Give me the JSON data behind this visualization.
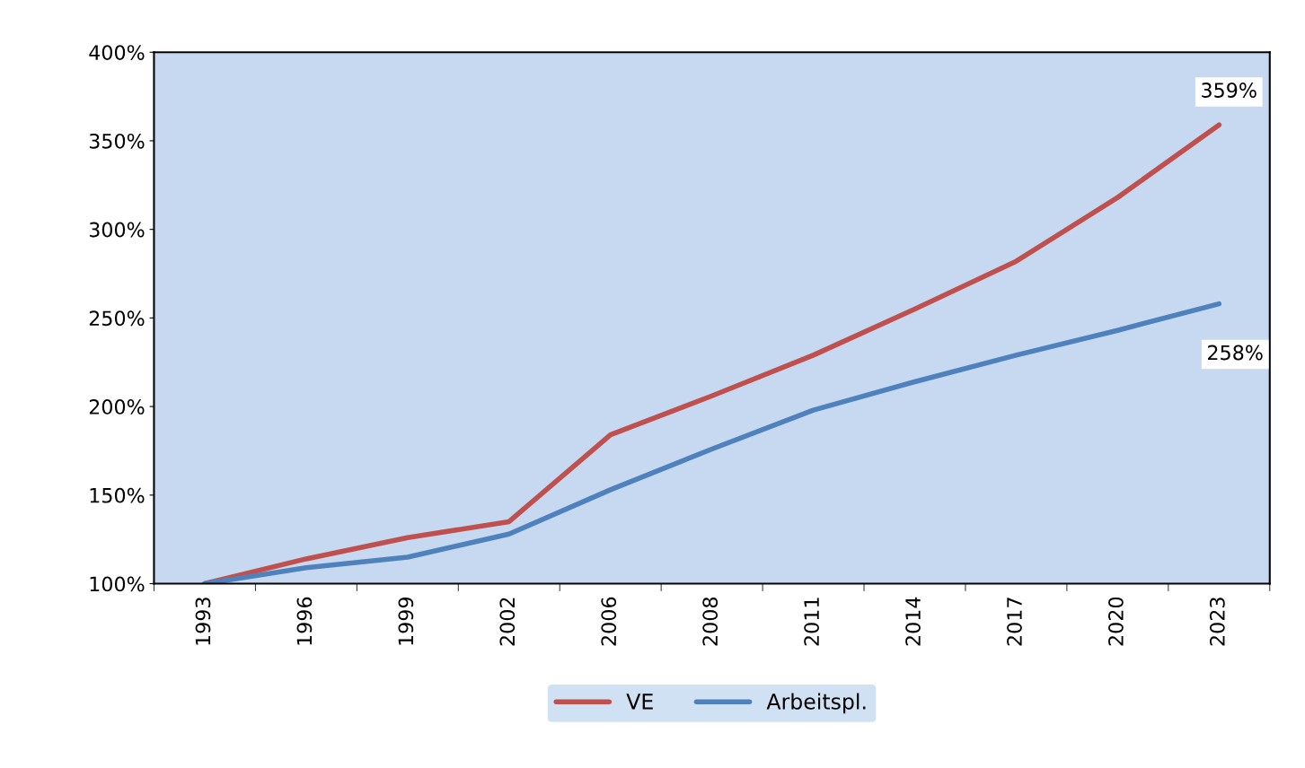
{
  "chart_data": {
    "type": "line",
    "categories": [
      "1993",
      "1996",
      "1999",
      "2002",
      "2006",
      "2008",
      "2011",
      "2014",
      "2017",
      "2020",
      "2023"
    ],
    "series": [
      {
        "name": "VE",
        "color": "#c0504d",
        "values": [
          100,
          114,
          126,
          135,
          184,
          206,
          229,
          255,
          282,
          318,
          359
        ]
      },
      {
        "name": "Arbeitspl.",
        "color": "#4f81bd",
        "values": [
          100,
          109,
          115,
          128,
          153,
          176,
          198,
          214,
          229,
          243,
          258
        ]
      }
    ],
    "ylim": [
      100,
      400
    ],
    "yticks": [
      {
        "value": 100,
        "label": "100%"
      },
      {
        "value": 150,
        "label": "150%"
      },
      {
        "value": 200,
        "label": "200%"
      },
      {
        "value": 250,
        "label": "250%"
      },
      {
        "value": 300,
        "label": "300%"
      },
      {
        "value": 350,
        "label": "350%"
      },
      {
        "value": 400,
        "label": "400%"
      }
    ],
    "annotations": [
      {
        "text": "359%",
        "x": "2023",
        "y": 359
      },
      {
        "text": "258%",
        "x": "2023",
        "y": 258
      }
    ],
    "legend": "bottom",
    "grid": false,
    "marker": "none",
    "line_style": "solid"
  }
}
